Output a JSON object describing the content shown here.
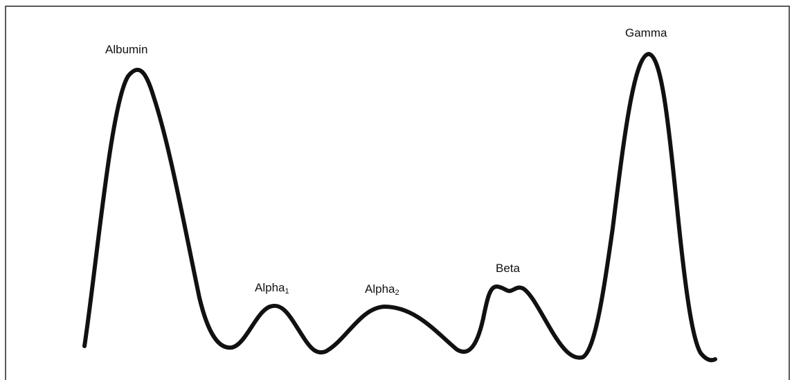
{
  "figure": {
    "line_color": "#111111",
    "border_color": "#222222",
    "background": "#ffffff"
  },
  "labels": {
    "albumin": "Albumin",
    "alpha1": {
      "base": "Alpha",
      "sub": "1"
    },
    "alpha2": {
      "base": "Alpha",
      "sub": "2"
    },
    "beta": "Beta",
    "gamma": "Gamma"
  }
}
